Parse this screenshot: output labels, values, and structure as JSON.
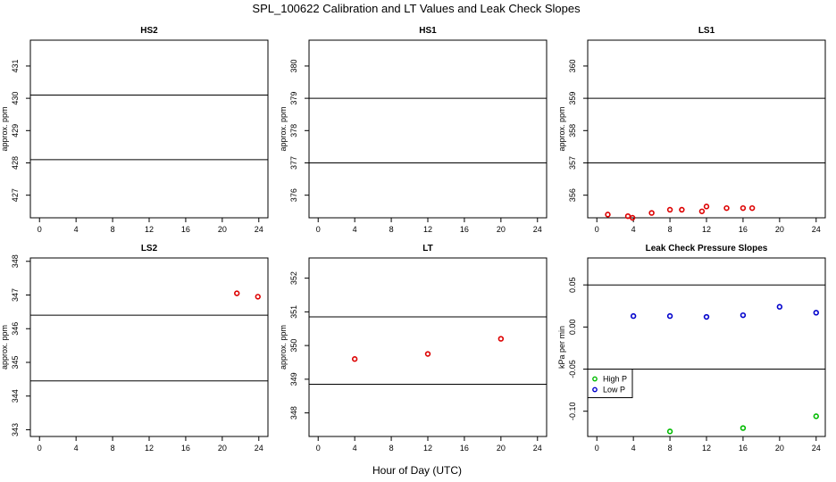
{
  "figure": {
    "title": "SPL_100622  Calibration and LT Values and Leak Check Slopes",
    "xlabel": "Hour of Day (UTC)"
  },
  "chart_data": [
    {
      "id": "hs2",
      "type": "scatter",
      "title": "HS2",
      "ylabel": "approx. ppm",
      "xlim": [
        -1,
        25
      ],
      "ylim": [
        426.3,
        431.8
      ],
      "xticks": [
        0,
        4,
        8,
        12,
        16,
        20,
        24
      ],
      "yticks": [
        427,
        428,
        429,
        430,
        431
      ],
      "hlines": [
        430.1,
        428.1
      ],
      "series": []
    },
    {
      "id": "hs1",
      "type": "scatter",
      "title": "HS1",
      "ylabel": "approx. ppm",
      "xlim": [
        -1,
        25
      ],
      "ylim": [
        375.3,
        380.8
      ],
      "xticks": [
        0,
        4,
        8,
        12,
        16,
        20,
        24
      ],
      "yticks": [
        376,
        377,
        378,
        379,
        380
      ],
      "hlines": [
        379.0,
        377.0
      ],
      "series": []
    },
    {
      "id": "ls1",
      "type": "scatter",
      "title": "LS1",
      "ylabel": "approx. ppm",
      "xlim": [
        -1,
        25
      ],
      "ylim": [
        355.3,
        360.8
      ],
      "xticks": [
        0,
        4,
        8,
        12,
        16,
        20,
        24
      ],
      "yticks": [
        356,
        357,
        358,
        359,
        360
      ],
      "hlines": [
        359.0,
        357.0
      ],
      "series": [
        {
          "name": "LS1",
          "color": "#dd0000",
          "x": [
            1.2,
            3.4,
            3.9,
            6.0,
            8.0,
            9.3,
            11.5,
            12.0,
            14.2,
            16.0,
            17.0
          ],
          "y": [
            355.4,
            355.35,
            355.3,
            355.45,
            355.55,
            355.55,
            355.5,
            355.65,
            355.6,
            355.6,
            355.6
          ]
        }
      ]
    },
    {
      "id": "ls2",
      "type": "scatter",
      "title": "LS2",
      "ylabel": "approx. ppm",
      "xlim": [
        -1,
        25
      ],
      "ylim": [
        342.8,
        348.1
      ],
      "xticks": [
        0,
        4,
        8,
        12,
        16,
        20,
        24
      ],
      "yticks": [
        343,
        344,
        345,
        346,
        347,
        348
      ],
      "hlines": [
        346.4,
        344.45
      ],
      "series": [
        {
          "name": "LS2",
          "color": "#dd0000",
          "x": [
            21.6,
            23.9
          ],
          "y": [
            347.05,
            346.95
          ]
        }
      ]
    },
    {
      "id": "lt",
      "type": "scatter",
      "title": "LT",
      "ylabel": "approx. ppm",
      "xlim": [
        -1,
        25
      ],
      "ylim": [
        347.3,
        352.6
      ],
      "xticks": [
        0,
        4,
        8,
        12,
        16,
        20,
        24
      ],
      "yticks": [
        348,
        349,
        350,
        351,
        352
      ],
      "hlines": [
        350.85,
        348.85
      ],
      "series": [
        {
          "name": "LT",
          "color": "#dd0000",
          "x": [
            4.0,
            12.0,
            20.0
          ],
          "y": [
            349.6,
            349.75,
            350.2
          ]
        }
      ]
    },
    {
      "id": "leak",
      "type": "scatter",
      "title": "Leak Check Pressure Slopes",
      "ylabel": "kPa per min",
      "xlim": [
        -1,
        25
      ],
      "ylim": [
        -0.13,
        0.082
      ],
      "xticks": [
        0,
        4,
        8,
        12,
        16,
        20,
        24
      ],
      "yticks": [
        -0.1,
        -0.05,
        0.0,
        0.05
      ],
      "yticklabels": [
        "-0.10",
        "-0.05",
        "0.00",
        "0.05"
      ],
      "hlines": [
        0.05,
        -0.05
      ],
      "legend": {
        "position": "bottom-left",
        "entries": [
          "High P",
          "Low P"
        ]
      },
      "series": [
        {
          "name": "High P",
          "color": "#00bb00",
          "x": [
            8.0,
            16.0,
            24.0
          ],
          "y": [
            -0.124,
            -0.12,
            -0.106
          ]
        },
        {
          "name": "Low P",
          "color": "#0000cc",
          "x": [
            4.0,
            8.0,
            12.0,
            16.0,
            20.0,
            24.0
          ],
          "y": [
            0.013,
            0.013,
            0.012,
            0.014,
            0.024,
            0.017
          ]
        }
      ]
    }
  ]
}
